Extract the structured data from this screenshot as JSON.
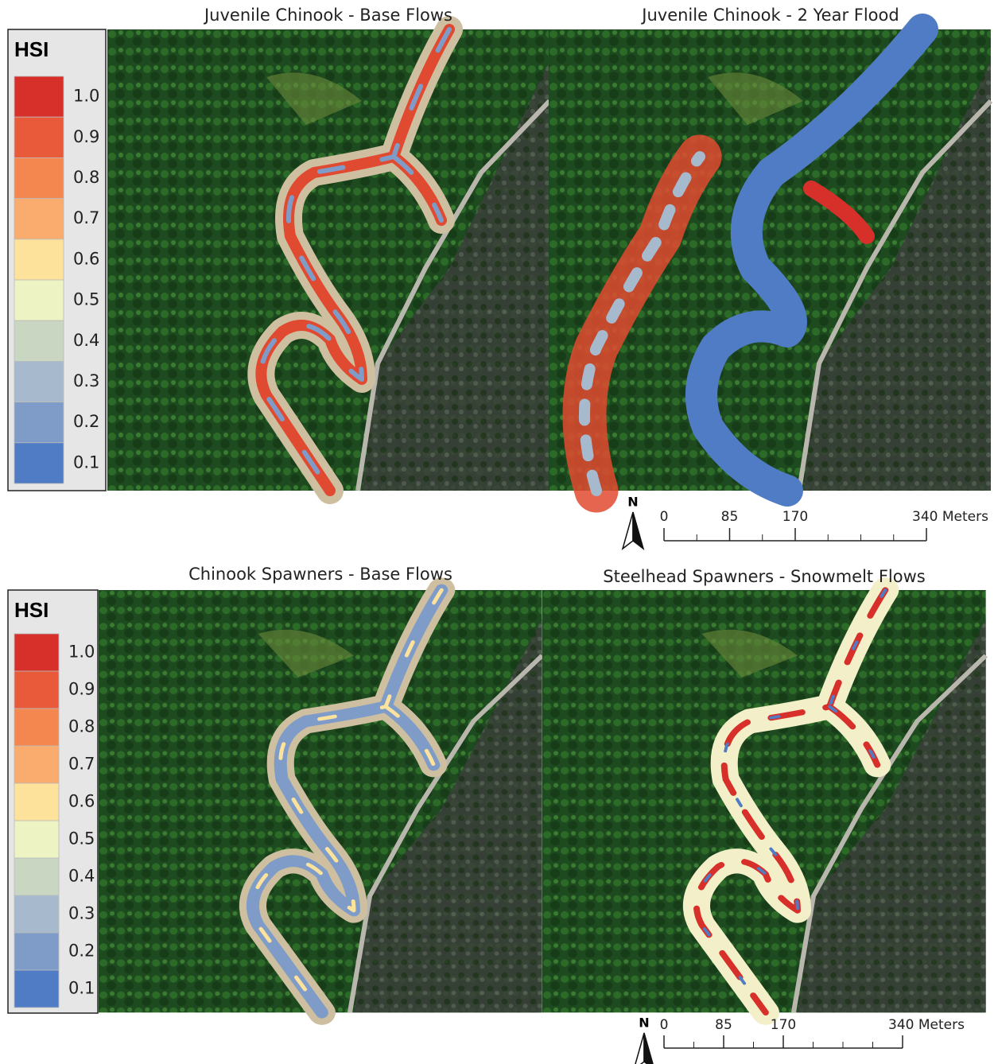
{
  "panels": [
    {
      "title": "Juvenile Chinook - Base Flows"
    },
    {
      "title": "Juvenile Chinook - 2 Year Flood"
    },
    {
      "title": "Chinook Spawners - Base Flows"
    },
    {
      "title": "Steelhead Spawners - Snowmelt Flows"
    }
  ],
  "legends": [
    {
      "title": "HSI",
      "entries": [
        {
          "label": "1.0",
          "color": "#d7302a"
        },
        {
          "label": "0.9",
          "color": "#e95a3a"
        },
        {
          "label": "0.8",
          "color": "#f3874f"
        },
        {
          "label": "0.7",
          "color": "#f9ac6d"
        },
        {
          "label": "0.6",
          "color": "#fde29b"
        },
        {
          "label": "0.5",
          "color": "#eef3c3"
        },
        {
          "label": "0.4",
          "color": "#c8d6c2"
        },
        {
          "label": "0.3",
          "color": "#a7b9cc"
        },
        {
          "label": "0.2",
          "color": "#7f9cc9"
        },
        {
          "label": "0.1",
          "color": "#4f7cc4"
        }
      ]
    },
    {
      "title": "HSI",
      "entries": [
        {
          "label": "1.0",
          "color": "#d7302a"
        },
        {
          "label": "0.9",
          "color": "#e95a3a"
        },
        {
          "label": "0.8",
          "color": "#f3874f"
        },
        {
          "label": "0.7",
          "color": "#f9ac6d"
        },
        {
          "label": "0.6",
          "color": "#fde29b"
        },
        {
          "label": "0.5",
          "color": "#eef3c3"
        },
        {
          "label": "0.4",
          "color": "#c8d6c2"
        },
        {
          "label": "0.3",
          "color": "#a7b9cc"
        },
        {
          "label": "0.2",
          "color": "#7f9cc9"
        },
        {
          "label": "0.1",
          "color": "#4f7cc4"
        }
      ]
    }
  ],
  "scale_bars": [
    {
      "north": "N",
      "xlim": [
        0,
        340
      ],
      "ticks": [
        {
          "value": 0,
          "label": "0"
        },
        {
          "value": 85,
          "label": "85"
        },
        {
          "value": 170,
          "label": "170"
        },
        {
          "value": 340,
          "label": "340 Meters"
        }
      ]
    },
    {
      "north": "N",
      "xlim": [
        0,
        340
      ],
      "ticks": [
        {
          "value": 0,
          "label": "0"
        },
        {
          "value": 85,
          "label": "85"
        },
        {
          "value": 170,
          "label": "170"
        },
        {
          "value": 340,
          "label": "340 Meters"
        }
      ]
    }
  ]
}
